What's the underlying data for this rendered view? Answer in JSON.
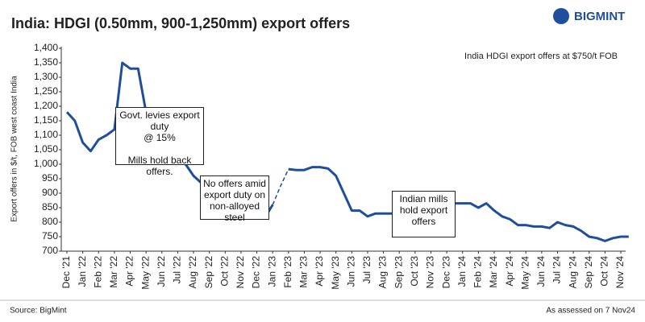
{
  "chart_data": {
    "type": "line",
    "title": "India: HDGI (0.50mm, 900-1,250mm) export offers",
    "logo": "BIGMINT",
    "y_label": "Export offers in $/t, FOB west coast India",
    "legend_text": "India HDGI export offers at $750/t FOB",
    "source": "Source: BigMint",
    "note": "As assessed on 7 Nov24",
    "categories": [
      "Dec '21",
      null,
      "Jan '22",
      null,
      "Feb '22",
      null,
      "Mar '22",
      null,
      "Apr '22",
      null,
      "May '22",
      null,
      "Jun '22",
      null,
      "Jul '22",
      null,
      "Aug '22",
      null,
      "Sep '22",
      null,
      "Oct '22",
      null,
      "Nov '22",
      null,
      "Dec '22",
      null,
      "Jan '23",
      null,
      "Feb '23",
      null,
      "Mar '23",
      null,
      "Apr '23",
      null,
      "May '23",
      null,
      "Jun '23",
      null,
      "Jul '23",
      null,
      "Aug '23",
      null,
      "Sep '23",
      null,
      "Oct '23",
      null,
      "Nov '23",
      null,
      "Dec '23",
      null,
      "Jan '24",
      null,
      "Feb '24",
      null,
      "Mar '24",
      null,
      "Apr '24",
      null,
      "May '24",
      null,
      "Jun '24",
      null,
      "Jul '24",
      null,
      "Aug '24",
      null,
      "Sep '24",
      null,
      "Oct '24",
      null,
      "Nov '24",
      null
    ],
    "series": [
      {
        "color": "#1f4e9c",
        "dashed": false,
        "values": [
          1180,
          1150,
          1075,
          1045,
          1085,
          1100,
          1120,
          1350,
          1330,
          1330,
          1180,
          1150,
          1120,
          1080,
          1030,
          1000,
          960,
          935,
          920,
          900,
          880,
          860,
          840,
          820,
          815,
          815,
          860,
          null,
          983,
          980,
          980,
          990,
          990,
          985,
          960,
          900,
          840,
          840,
          820,
          830,
          830,
          830,
          830,
          830,
          840,
          850,
          860,
          865,
          865,
          865,
          865,
          865,
          850,
          865,
          840,
          820,
          810,
          790,
          790,
          785,
          785,
          780,
          800,
          790,
          785,
          770,
          750,
          745,
          735,
          745,
          750,
          750
        ]
      },
      {
        "color": "#1f4e9c",
        "dashed": true,
        "values": [
          null,
          null,
          null,
          null,
          null,
          null,
          null,
          null,
          null,
          null,
          null,
          null,
          null,
          null,
          null,
          null,
          null,
          null,
          null,
          null,
          null,
          null,
          null,
          null,
          null,
          null,
          860,
          925,
          983,
          null,
          null,
          null,
          null,
          null,
          null,
          null,
          null,
          null,
          null,
          null,
          null,
          null,
          null,
          null,
          null,
          null,
          null,
          null,
          null,
          null,
          null,
          null,
          null,
          null,
          null,
          null,
          null,
          null,
          null,
          null,
          null,
          null,
          null,
          null,
          null,
          null,
          null,
          null,
          null,
          null,
          null,
          null
        ]
      }
    ],
    "ylim": [
      700,
      1400
    ],
    "yticks": [
      700,
      750,
      800,
      850,
      900,
      950,
      {
        "value": 1000,
        "label": "1,000"
      },
      {
        "value": 1050,
        "label": "1,050"
      },
      {
        "value": 1100,
        "label": "1,100"
      },
      {
        "value": 1150,
        "label": "1,150"
      },
      {
        "value": 1200,
        "label": "1,200"
      },
      {
        "value": 1250,
        "label": "1,250"
      },
      {
        "value": 1300,
        "label": "1,300"
      },
      {
        "value": 1350,
        "label": "1,350"
      },
      {
        "value": 1400,
        "label": "1,400"
      }
    ],
    "annotations": [
      {
        "lines": [
          "Govt. levies export duty",
          "@ 15%"
        ],
        "lines2": [
          "Mills hold back offers."
        ]
      },
      {
        "lines": [
          "No offers amid",
          "export duty on",
          "non-alloyed",
          "steel"
        ]
      },
      {
        "lines": [
          "Indian mills",
          "hold export",
          "offers"
        ]
      }
    ]
  }
}
